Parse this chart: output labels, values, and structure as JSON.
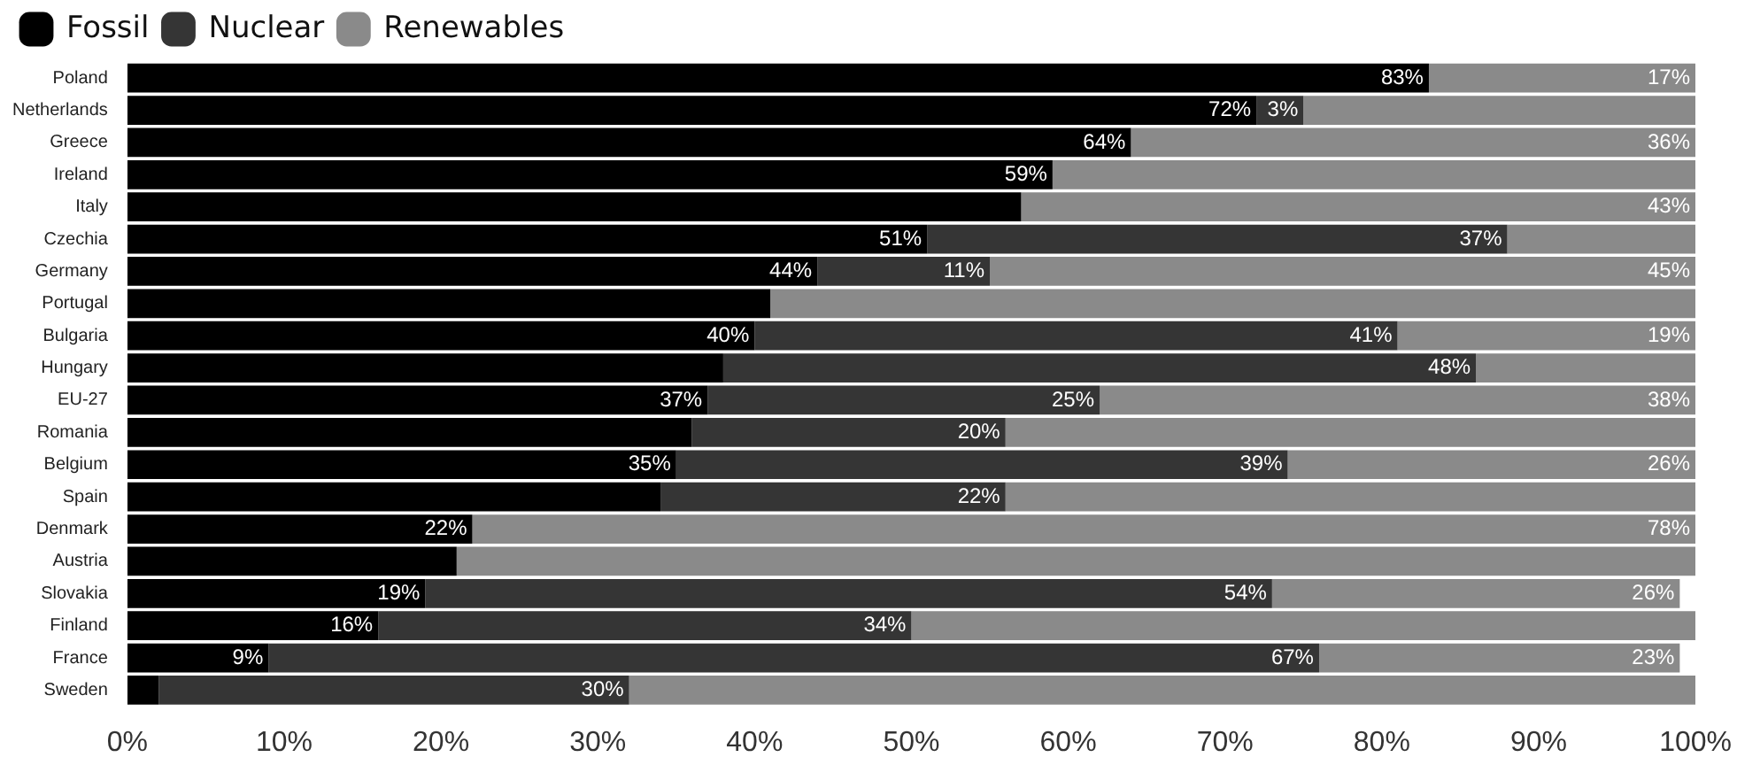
{
  "chart_data": {
    "type": "bar",
    "orientation": "horizontal",
    "stacked": true,
    "legend": "top left",
    "grid": false,
    "categories": [
      "Poland",
      "Netherlands",
      "Greece",
      "Ireland",
      "Italy",
      "Czechia",
      "Germany",
      "Portugal",
      "Bulgaria",
      "Hungary",
      "EU-27",
      "Romania",
      "Belgium",
      "Spain",
      "Denmark",
      "Austria",
      "Slovakia",
      "Finland",
      "France",
      "Sweden"
    ],
    "xlim": [
      0,
      100
    ],
    "xticks": [
      {
        "value": 0,
        "label": "0%"
      },
      {
        "value": 10,
        "label": "10%"
      },
      {
        "value": 20,
        "label": "20%"
      },
      {
        "value": 30,
        "label": "30%"
      },
      {
        "value": 40,
        "label": "40%"
      },
      {
        "value": 50,
        "label": "50%"
      },
      {
        "value": 60,
        "label": "60%"
      },
      {
        "value": 70,
        "label": "70%"
      },
      {
        "value": 80,
        "label": "80%"
      },
      {
        "value": 90,
        "label": "90%"
      },
      {
        "value": 100,
        "label": "100%"
      }
    ],
    "series": [
      {
        "name": "Fossil",
        "color": "#000000",
        "values": [
          83,
          72,
          64,
          59,
          57,
          51,
          44,
          41,
          40,
          38,
          37,
          36,
          35,
          34,
          22,
          21,
          19,
          16,
          9,
          2
        ],
        "value_labels": [
          "83%",
          "72%",
          "64%",
          "59%",
          null,
          "51%",
          "44%",
          null,
          "40%",
          null,
          "37%",
          null,
          "35%",
          null,
          "22%",
          null,
          "19%",
          "16%",
          "9%",
          null
        ]
      },
      {
        "name": "Nuclear",
        "color": "#353535",
        "values": [
          0,
          3,
          0,
          0,
          0,
          37,
          11,
          0,
          41,
          48,
          25,
          20,
          39,
          22,
          0,
          0,
          54,
          34,
          67,
          30
        ],
        "value_labels": [
          null,
          "3%",
          null,
          null,
          null,
          "37%",
          "11%",
          null,
          "41%",
          "48%",
          "25%",
          "20%",
          "39%",
          "22%",
          null,
          null,
          "54%",
          "34%",
          "67%",
          "30%"
        ]
      },
      {
        "name": "Renewables",
        "color": "#8a8a8a",
        "values": [
          17,
          25,
          36,
          41,
          43,
          12,
          45,
          59,
          19,
          14,
          38,
          44,
          26,
          44,
          78,
          79,
          26,
          50,
          23,
          68
        ],
        "value_labels": [
          "17%",
          null,
          "36%",
          null,
          "43%",
          null,
          "45%",
          null,
          "19%",
          null,
          "38%",
          null,
          "26%",
          null,
          "78%",
          null,
          "26%",
          null,
          "23%",
          null
        ]
      }
    ]
  }
}
